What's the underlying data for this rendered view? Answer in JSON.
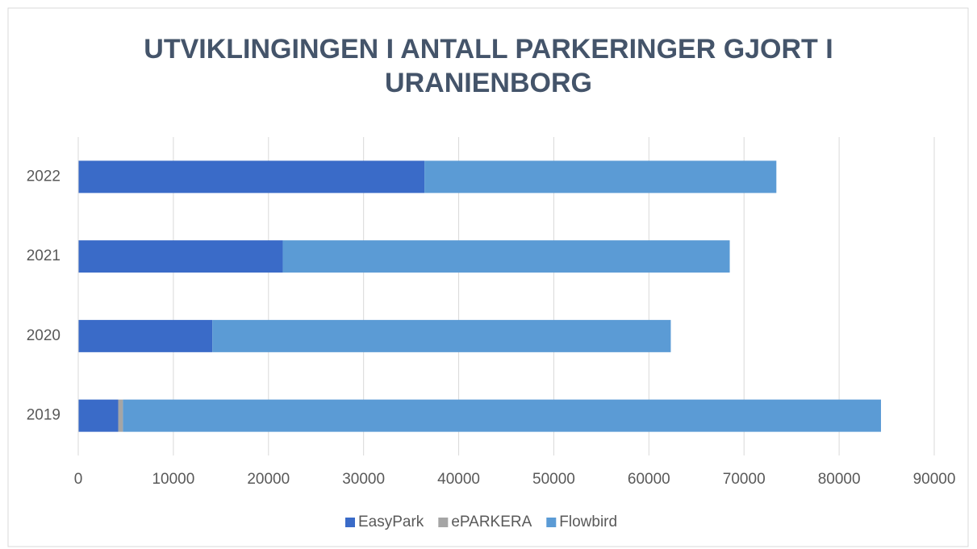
{
  "chart_data": {
    "type": "stacked-barh",
    "title": "UTVIKLINGINGEN I ANTALL PARKERINGER GJORT I URANIENBORG",
    "categories": [
      "2019",
      "2020",
      "2021",
      "2022"
    ],
    "series": [
      {
        "name": "EasyPark",
        "color": "#3a6bc8",
        "values": [
          4200,
          14100,
          21500,
          36400
        ]
      },
      {
        "name": "ePARKERA",
        "color": "#a5a5a5",
        "values": [
          500,
          0,
          0,
          0
        ]
      },
      {
        "name": "Flowbird",
        "color": "#5b9bd5",
        "values": [
          79700,
          48200,
          47000,
          37000
        ]
      }
    ],
    "xlim": [
      0,
      90000
    ],
    "xticks": [
      0,
      10000,
      20000,
      30000,
      40000,
      50000,
      60000,
      70000,
      80000,
      90000
    ],
    "grid": true,
    "legend": "bottom"
  }
}
